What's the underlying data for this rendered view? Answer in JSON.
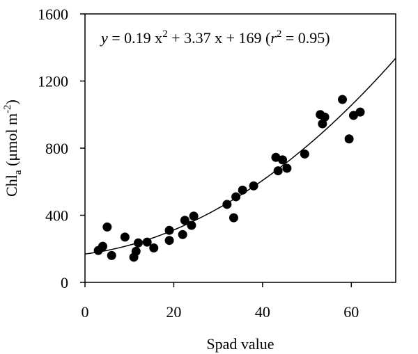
{
  "chart_data": {
    "type": "scatter",
    "title": "",
    "xlabel": "Spad value",
    "ylabel_text": "Chl",
    "ylabel_subscript": "a",
    "ylabel_units_open": " (μmol m",
    "ylabel_units_sup": "-2",
    "ylabel_units_close": ")",
    "xlim": [
      0,
      70
    ],
    "ylim": [
      0,
      1600
    ],
    "xticks": [
      0,
      20,
      40,
      60
    ],
    "yticks": [
      0,
      400,
      800,
      1200,
      1600
    ],
    "xtick_labels": [
      "0",
      "20",
      "40",
      "60"
    ],
    "ytick_labels": [
      "0",
      "400",
      "800",
      "1200",
      "1600"
    ],
    "grid": false,
    "legend": "none",
    "equation": {
      "y": "y",
      "part1": " = 0.19 x",
      "sup1": "2",
      "part2": " + 3.37 x + 169 (",
      "r": "r",
      "sup2": "2",
      "part3": " = 0.95)"
    },
    "fit": {
      "a": 0.19,
      "b": 3.37,
      "c": 169,
      "x_range": [
        0,
        70
      ]
    },
    "series": [
      {
        "x": [
          3,
          4,
          5,
          6,
          9,
          11,
          11.5,
          12,
          14,
          15.5,
          19,
          19,
          22,
          22.5,
          24,
          24.5,
          32,
          33.5,
          34,
          35.5,
          38,
          43,
          43.5,
          44.5,
          45.5,
          49.5,
          53,
          53.5,
          54,
          58,
          59.5,
          60.5,
          62
        ],
        "y": [
          190,
          215,
          330,
          160,
          270,
          150,
          185,
          235,
          240,
          205,
          250,
          310,
          285,
          370,
          340,
          395,
          465,
          385,
          510,
          550,
          575,
          745,
          665,
          730,
          680,
          765,
          1000,
          945,
          985,
          1090,
          855,
          995,
          1015
        ]
      }
    ],
    "colors": {
      "points": "#000000",
      "fit_line": "#000000",
      "axes": "#000000"
    }
  }
}
